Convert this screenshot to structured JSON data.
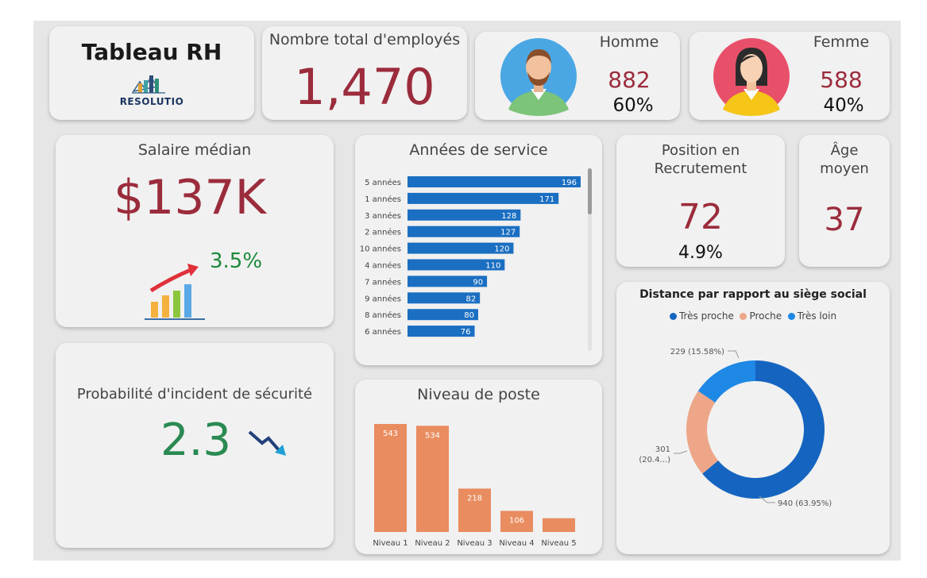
{
  "header": {
    "title": "Tableau RH",
    "brand": "RESOLUTIO"
  },
  "total": {
    "label": "Nombre total d'employés",
    "value": "1,470"
  },
  "homme": {
    "label": "Homme",
    "count": "882",
    "pct": "60%"
  },
  "femme": {
    "label": "Femme",
    "count": "588",
    "pct": "40%"
  },
  "salaire": {
    "label": "Salaire médian",
    "value": "$137K",
    "trend": "3.5%"
  },
  "position": {
    "label_line1": "Position en",
    "label_line2": "Recrutement",
    "value": "72",
    "pct": "4.9%"
  },
  "age": {
    "label_line1": "Âge",
    "label_line2": "moyen",
    "value": "37"
  },
  "probabilite": {
    "label": "Probabilité d'incident de sécurité",
    "value": "2.3"
  },
  "colors": {
    "accent_red": "#9b2c3c",
    "green": "#2a8a52",
    "bar_blue": "#1b6fc2",
    "bar_orange": "#e98c5f",
    "donut_dark_blue": "#1565c0",
    "donut_peach": "#eda688",
    "donut_light_blue": "#1e88e5"
  },
  "chart_data": [
    {
      "type": "bar",
      "orientation": "horizontal",
      "title": "Années de service",
      "categories": [
        "5 années",
        "1 années",
        "3 années",
        "2 années",
        "10 années",
        "4 années",
        "7 années",
        "9 années",
        "8 années",
        "6 années"
      ],
      "values": [
        196,
        171,
        128,
        127,
        120,
        110,
        90,
        82,
        80,
        76
      ]
    },
    {
      "type": "bar",
      "title": "Niveau de poste",
      "categories": [
        "Niveau 1",
        "Niveau 2",
        "Niveau 3",
        "Niveau 4",
        "Niveau 5"
      ],
      "values": [
        543,
        534,
        218,
        106,
        69
      ],
      "data_labels": [
        "543",
        "534",
        "218",
        "106",
        ""
      ]
    },
    {
      "type": "pie",
      "variant": "donut",
      "title": "Distance par rapport au siège social",
      "legend": [
        "Très proche",
        "Proche",
        "Très loin"
      ],
      "legend_position": "top",
      "slices": [
        {
          "name": "Très proche",
          "value": 940,
          "label": "940 (63.95%)"
        },
        {
          "name": "Proche",
          "value": 301,
          "label_line1": "301",
          "label_line2": "(20.4...)"
        },
        {
          "name": "Très loin",
          "value": 229,
          "label": "229 (15.58%)"
        }
      ]
    }
  ]
}
